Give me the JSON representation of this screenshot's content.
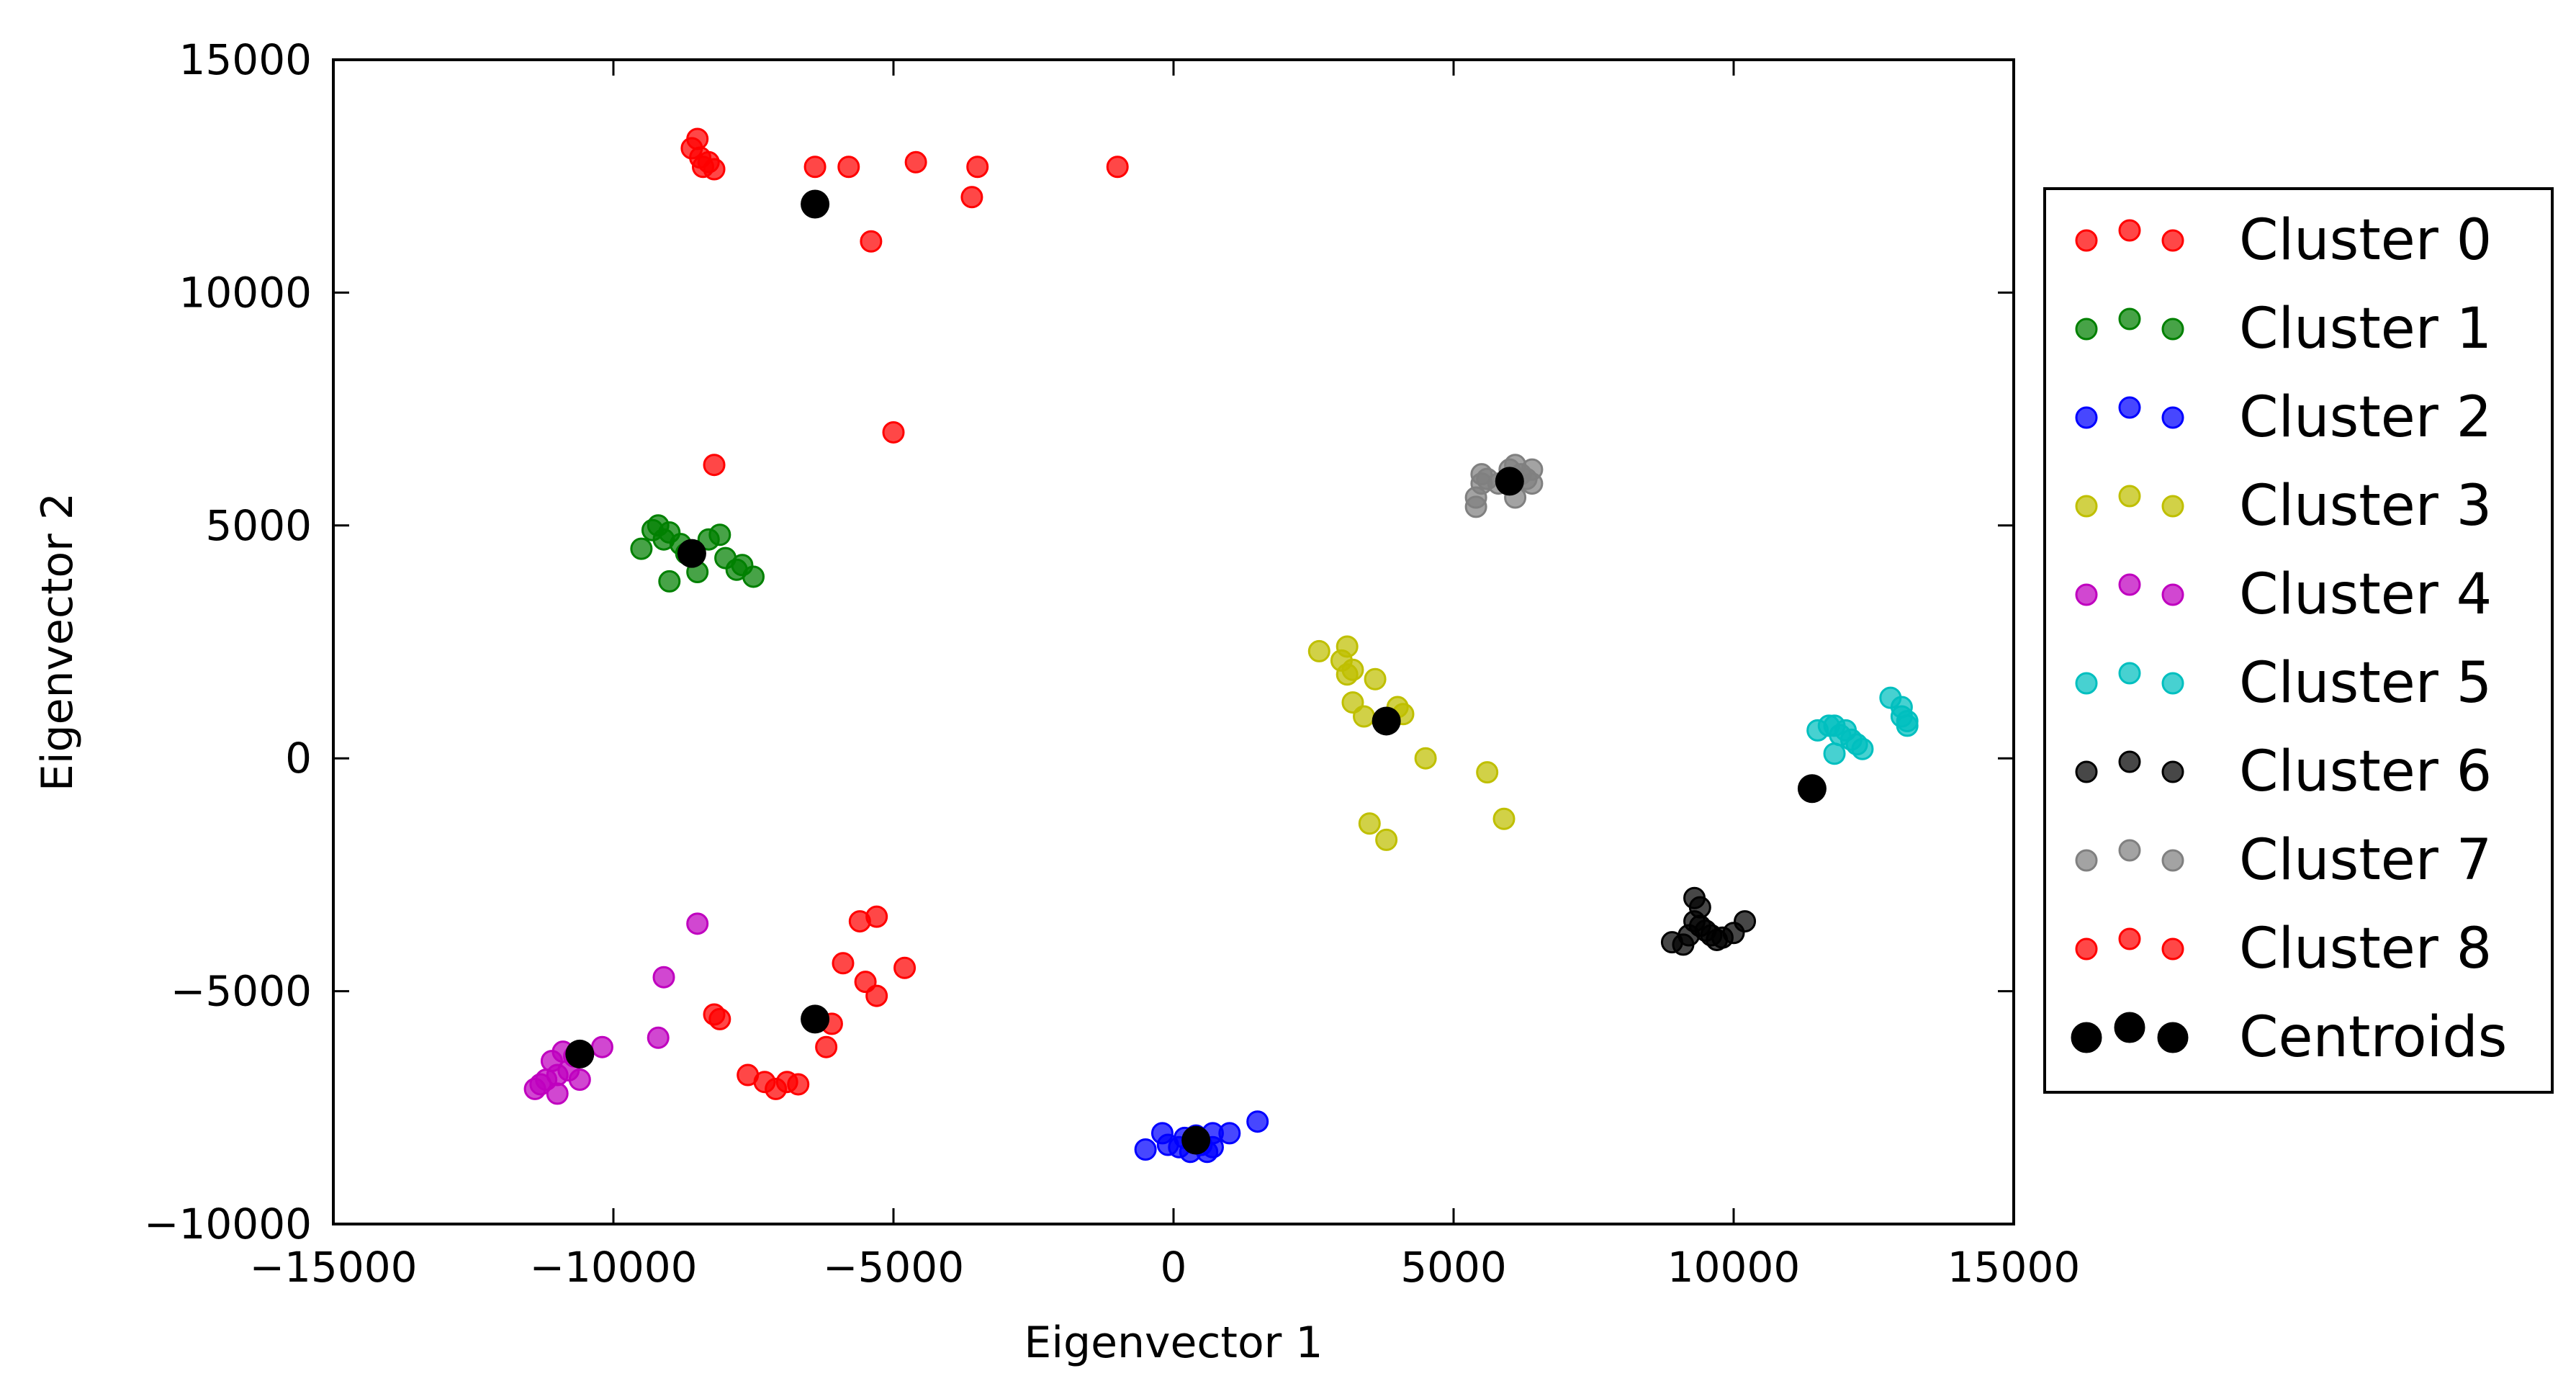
{
  "chart_data": {
    "type": "scatter",
    "title": "",
    "xlabel": "Eigenvector 1",
    "ylabel": "Eigenvector 2",
    "xlim": [
      -15000,
      15000
    ],
    "ylim": [
      -10000,
      15000
    ],
    "xticks": [
      -15000,
      -10000,
      -5000,
      0,
      5000,
      10000,
      15000
    ],
    "yticks": [
      -10000,
      -5000,
      0,
      5000,
      10000,
      15000
    ],
    "xtick_labels": [
      "−15000",
      "−10000",
      "−5000",
      "0",
      "5000",
      "10000",
      "15000"
    ],
    "ytick_labels": [
      "−10000",
      "−5000",
      "0",
      "5000",
      "10000",
      "15000"
    ],
    "grid": false,
    "legend_position": "outside-right",
    "series": [
      {
        "name": "Cluster 0",
        "color": "#ff0000",
        "points": [
          [
            -8600,
            13100
          ],
          [
            -8500,
            13300
          ],
          [
            -8450,
            12900
          ],
          [
            -8400,
            12700
          ],
          [
            -8300,
            12800
          ],
          [
            -8200,
            12650
          ],
          [
            -6400,
            12700
          ],
          [
            -5800,
            12700
          ],
          [
            -4600,
            12800
          ],
          [
            -3500,
            12700
          ],
          [
            -3600,
            12050
          ],
          [
            -5400,
            11100
          ],
          [
            -1000,
            12700
          ],
          [
            -5000,
            7000
          ],
          [
            -8200,
            6300
          ]
        ]
      },
      {
        "name": "Cluster 1",
        "color": "#008000",
        "points": [
          [
            -9500,
            4500
          ],
          [
            -9300,
            4900
          ],
          [
            -9200,
            5000
          ],
          [
            -9100,
            4700
          ],
          [
            -9000,
            4850
          ],
          [
            -9000,
            3800
          ],
          [
            -8800,
            4600
          ],
          [
            -8700,
            4400
          ],
          [
            -8500,
            4000
          ],
          [
            -8300,
            4700
          ],
          [
            -8100,
            4800
          ],
          [
            -8000,
            4300
          ],
          [
            -7800,
            4050
          ],
          [
            -7700,
            4150
          ],
          [
            -7500,
            3900
          ]
        ]
      },
      {
        "name": "Cluster 2",
        "color": "#0000ff",
        "points": [
          [
            -500,
            -8400
          ],
          [
            -200,
            -8050
          ],
          [
            -100,
            -8300
          ],
          [
            100,
            -8350
          ],
          [
            200,
            -8150
          ],
          [
            300,
            -8450
          ],
          [
            400,
            -8100
          ],
          [
            500,
            -8300
          ],
          [
            600,
            -8450
          ],
          [
            700,
            -8350
          ],
          [
            700,
            -8050
          ],
          [
            1000,
            -8050
          ],
          [
            1500,
            -7800
          ]
        ]
      },
      {
        "name": "Cluster 3",
        "color": "#bfbf00",
        "points": [
          [
            2600,
            2300
          ],
          [
            3000,
            2100
          ],
          [
            3100,
            2400
          ],
          [
            3200,
            1900
          ],
          [
            3100,
            1800
          ],
          [
            3200,
            1200
          ],
          [
            3400,
            900
          ],
          [
            3600,
            1700
          ],
          [
            3800,
            800
          ],
          [
            4000,
            1100
          ],
          [
            4100,
            950
          ],
          [
            4500,
            0
          ],
          [
            5600,
            -300
          ],
          [
            3500,
            -1400
          ],
          [
            3800,
            -1750
          ],
          [
            5900,
            -1300
          ]
        ]
      },
      {
        "name": "Cluster 4",
        "color": "#bf00bf",
        "points": [
          [
            -8500,
            -3550
          ],
          [
            -9100,
            -4700
          ],
          [
            -9200,
            -6000
          ],
          [
            -10200,
            -6200
          ],
          [
            -10700,
            -6400
          ],
          [
            -10800,
            -6700
          ],
          [
            -10900,
            -6300
          ],
          [
            -11000,
            -6800
          ],
          [
            -11000,
            -7200
          ],
          [
            -11100,
            -6500
          ],
          [
            -11200,
            -6900
          ],
          [
            -11300,
            -7000
          ],
          [
            -11400,
            -7100
          ],
          [
            -10600,
            -6900
          ]
        ]
      },
      {
        "name": "Cluster 5",
        "color": "#00bfbf",
        "points": [
          [
            11500,
            600
          ],
          [
            11700,
            700
          ],
          [
            11800,
            700
          ],
          [
            12000,
            600
          ],
          [
            11900,
            500
          ],
          [
            11800,
            100
          ],
          [
            12100,
            400
          ],
          [
            12200,
            300
          ],
          [
            12300,
            200
          ],
          [
            12800,
            1300
          ],
          [
            13000,
            1100
          ],
          [
            13000,
            900
          ],
          [
            13100,
            800
          ],
          [
            13100,
            700
          ]
        ]
      },
      {
        "name": "Cluster 6",
        "color": "#000000",
        "points": [
          [
            8900,
            -3950
          ],
          [
            9100,
            -4000
          ],
          [
            9200,
            -3800
          ],
          [
            9300,
            -3500
          ],
          [
            9300,
            -3000
          ],
          [
            9400,
            -3200
          ],
          [
            9400,
            -3600
          ],
          [
            9500,
            -3700
          ],
          [
            9600,
            -3800
          ],
          [
            9700,
            -3900
          ],
          [
            9800,
            -3850
          ],
          [
            10000,
            -3750
          ],
          [
            10200,
            -3500
          ]
        ]
      },
      {
        "name": "Cluster 7",
        "color": "#808080",
        "points": [
          [
            5400,
            5400
          ],
          [
            5400,
            5600
          ],
          [
            5500,
            5900
          ],
          [
            5500,
            6100
          ],
          [
            5600,
            6000
          ],
          [
            5800,
            5900
          ],
          [
            6000,
            6200
          ],
          [
            6100,
            6300
          ],
          [
            6200,
            6100
          ],
          [
            6300,
            6000
          ],
          [
            6400,
            6200
          ],
          [
            6400,
            5900
          ],
          [
            6100,
            5600
          ]
        ]
      },
      {
        "name": "Cluster 8",
        "color": "#ff0000",
        "points": [
          [
            -8200,
            -5500
          ],
          [
            -8100,
            -5600
          ],
          [
            -7600,
            -6800
          ],
          [
            -7300,
            -6950
          ],
          [
            -7100,
            -7100
          ],
          [
            -6900,
            -6950
          ],
          [
            -6700,
            -7000
          ],
          [
            -6200,
            -6200
          ],
          [
            -6100,
            -5700
          ],
          [
            -5900,
            -4400
          ],
          [
            -5600,
            -3500
          ],
          [
            -5500,
            -4800
          ],
          [
            -5300,
            -3400
          ],
          [
            -5300,
            -5100
          ],
          [
            -4800,
            -4500
          ]
        ]
      }
    ],
    "centroids": {
      "name": "Centroids",
      "color": "#000000",
      "points": [
        [
          -6400,
          11900
        ],
        [
          -8600,
          4400
        ],
        [
          400,
          -8200
        ],
        [
          3800,
          800
        ],
        [
          -10600,
          -6350
        ],
        [
          11400,
          -650
        ],
        [
          6000,
          5950
        ],
        [
          -6400,
          -5600
        ]
      ]
    }
  }
}
